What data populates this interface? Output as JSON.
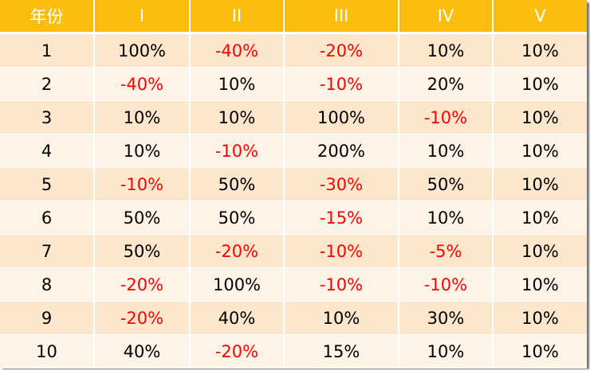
{
  "colors": {
    "header_bg": "#FBBE0E",
    "header_text": "#FFFFFF",
    "row_odd_bg": "#FCE6CC",
    "row_even_bg": "#FEF3E7",
    "negative_text": "#FF0000",
    "positive_text": "#000000"
  },
  "table": {
    "headers": [
      "年份",
      "I",
      "II",
      "III",
      "IV",
      "V"
    ],
    "rows": [
      [
        "1",
        "100%",
        "-40%",
        "-20%",
        "10%",
        "10%"
      ],
      [
        "2",
        "-40%",
        "10%",
        "-10%",
        "20%",
        "10%"
      ],
      [
        "3",
        "10%",
        "10%",
        "100%",
        "-10%",
        "10%"
      ],
      [
        "4",
        "10%",
        "-10%",
        "200%",
        "10%",
        "10%"
      ],
      [
        "5",
        "-10%",
        "50%",
        "-30%",
        "50%",
        "10%"
      ],
      [
        "6",
        "50%",
        "50%",
        "-15%",
        "10%",
        "10%"
      ],
      [
        "7",
        "50%",
        "-20%",
        "-10%",
        "-5%",
        "10%"
      ],
      [
        "8",
        "-20%",
        "100%",
        "-10%",
        "-10%",
        "10%"
      ],
      [
        "9",
        "-20%",
        "40%",
        "10%",
        "30%",
        "10%"
      ],
      [
        "10",
        "40%",
        "-20%",
        "15%",
        "10%",
        "10%"
      ]
    ]
  }
}
